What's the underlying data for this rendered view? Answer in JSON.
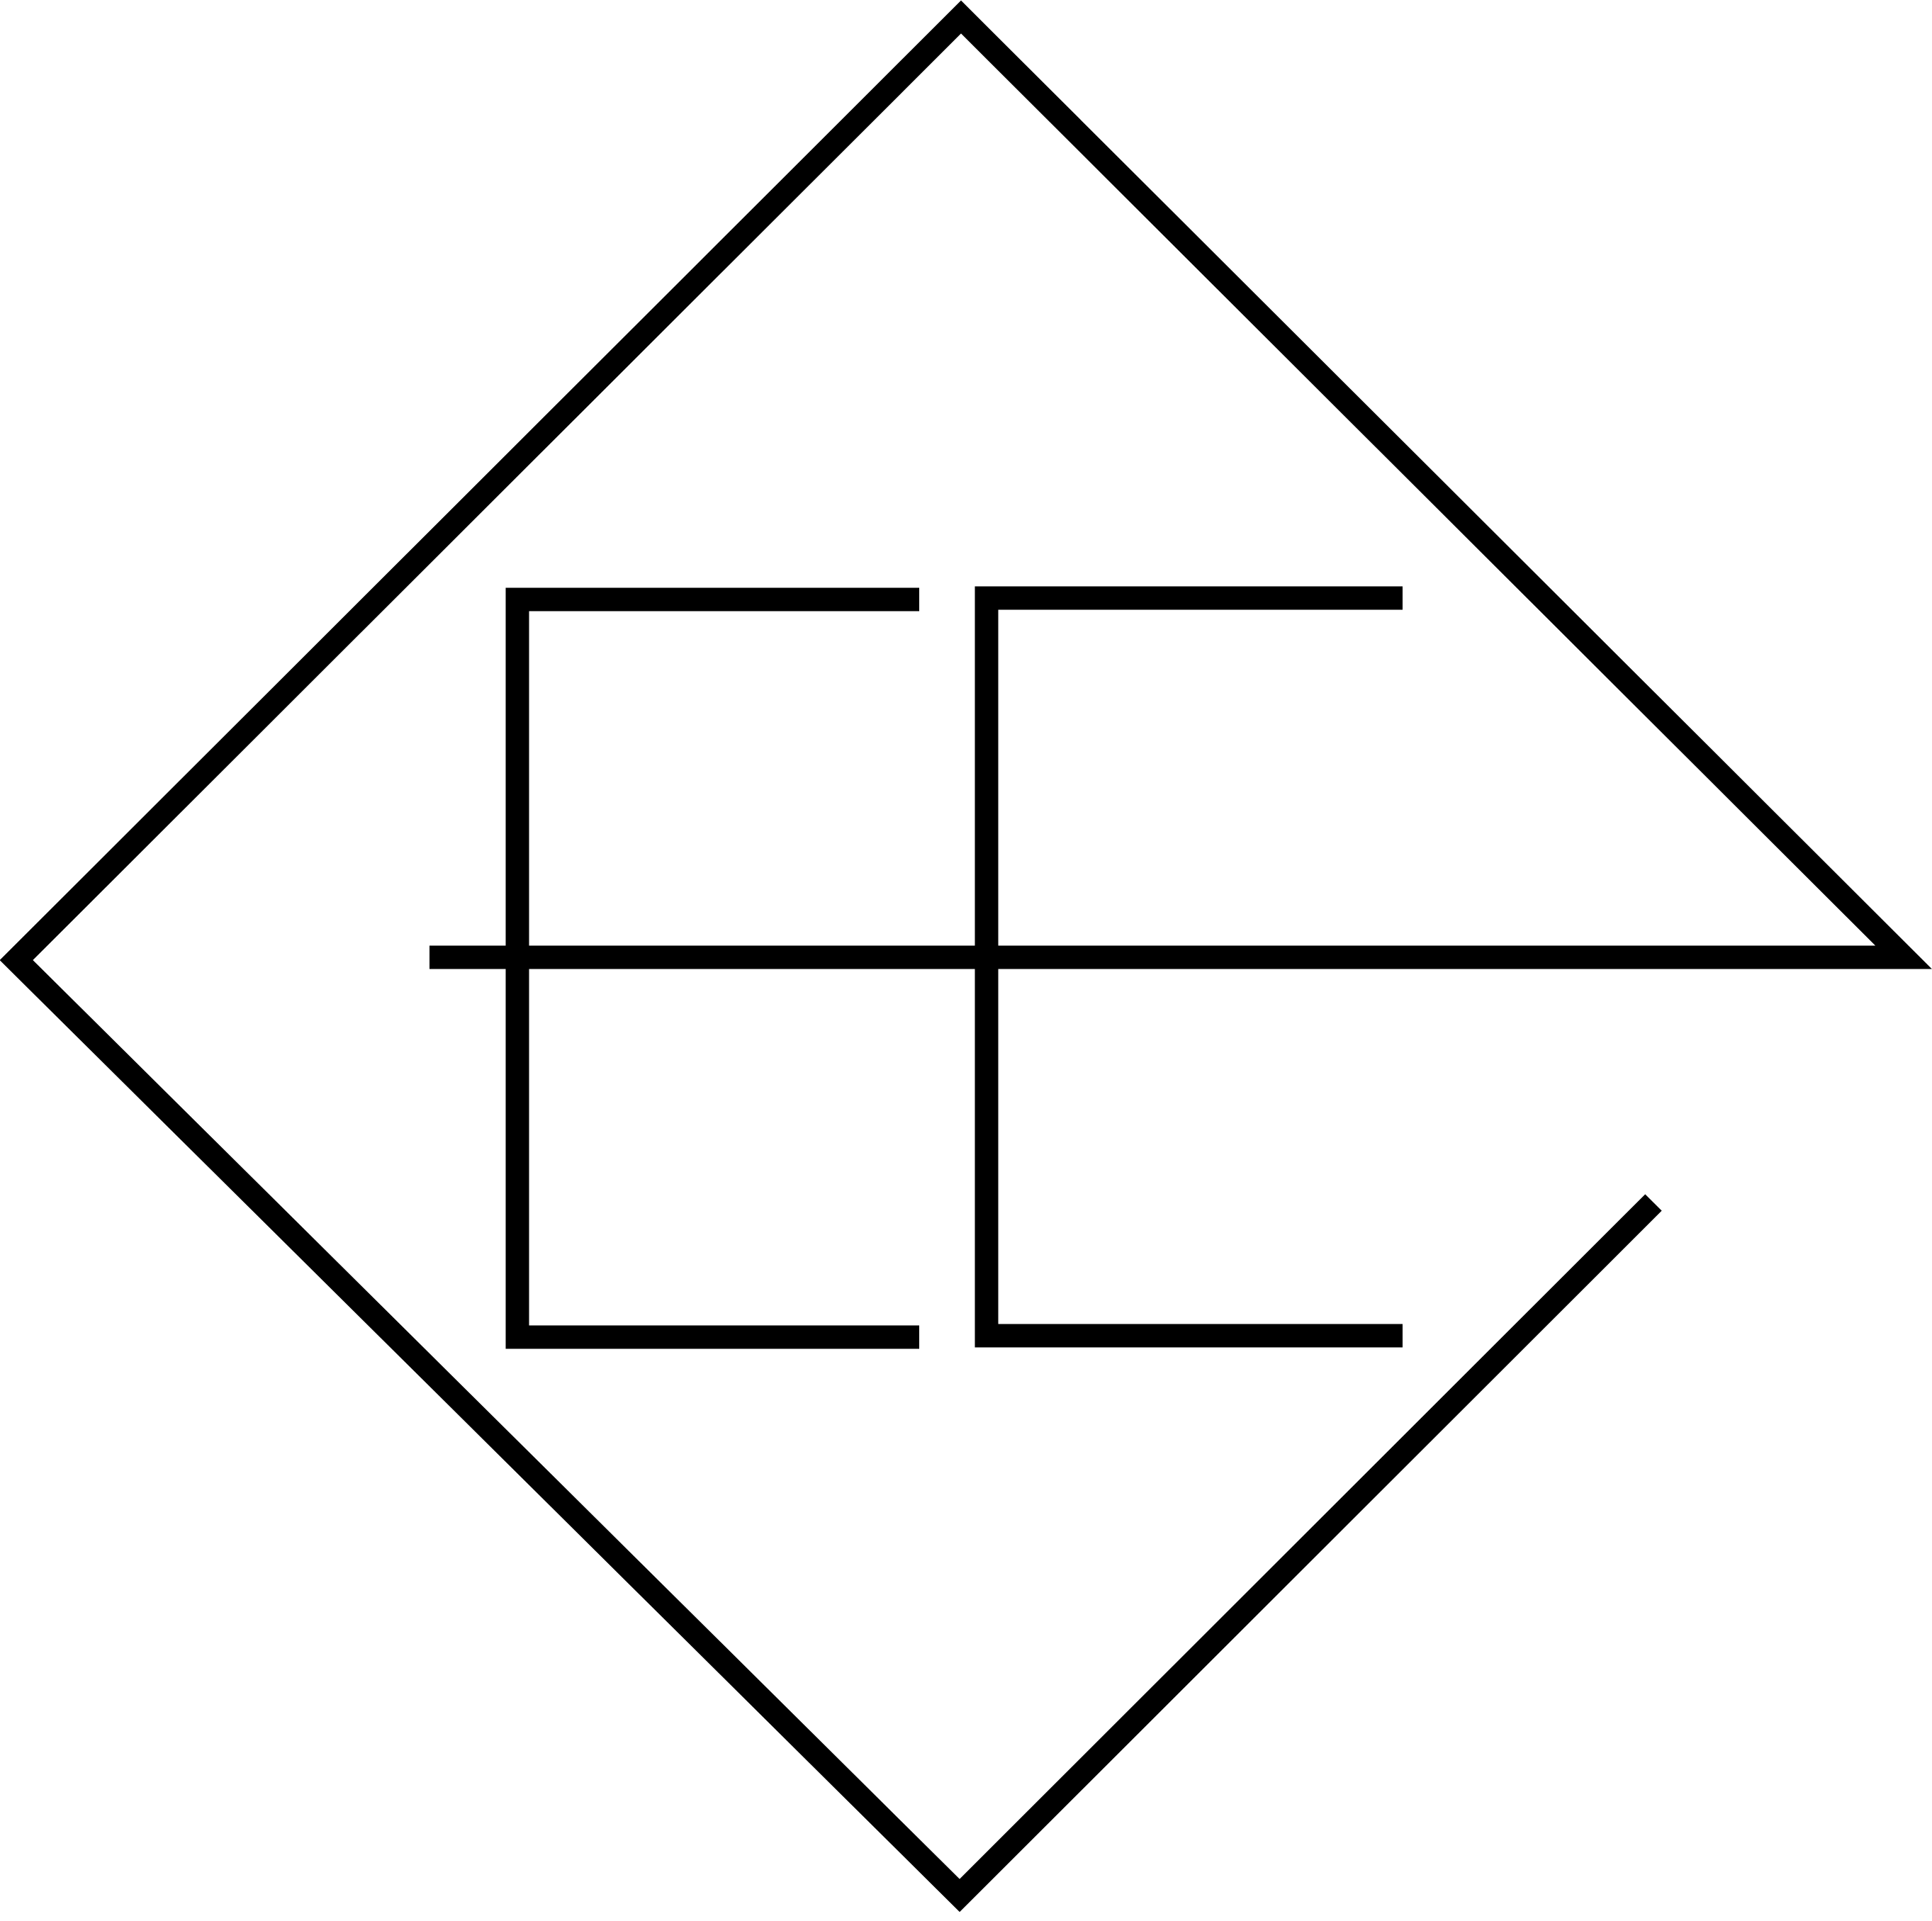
{
  "logo": {
    "description_free": true,
    "stroke_color": "#000000",
    "background_color": "#ffffff"
  },
  "icons": [
    "ee-monogram-logo-icon"
  ]
}
